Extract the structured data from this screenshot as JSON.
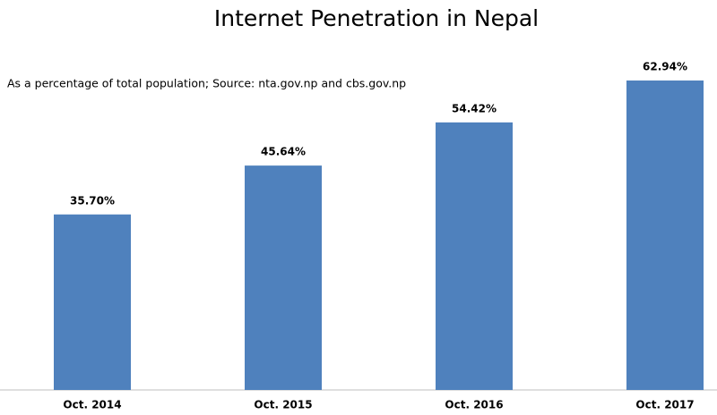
{
  "chart_data": {
    "type": "bar",
    "title": "Internet Penetration in Nepal",
    "subtitle": "As a percentage of total population; Source: nta.gov.np and cbs.gov.np",
    "categories": [
      "Oct. 2014",
      "Oct. 2015",
      "Oct. 2016",
      "Oct. 2017"
    ],
    "values": [
      35.7,
      45.64,
      54.42,
      62.94
    ],
    "value_labels": [
      "35.70%",
      "45.64%",
      "54.42%",
      "62.94%"
    ],
    "color": "#4f81bd"
  }
}
